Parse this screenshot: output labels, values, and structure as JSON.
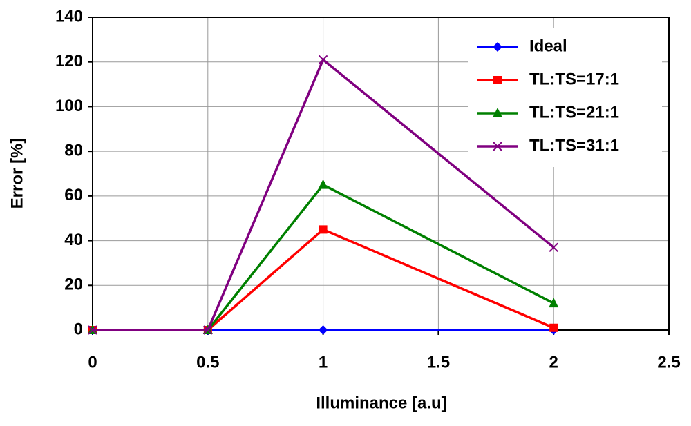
{
  "chart_data": {
    "type": "line",
    "x_label": "Illuminance [a.u]",
    "y_label": "Error [%]",
    "x": [
      0,
      0.5,
      1,
      2
    ],
    "series": [
      {
        "name": "Ideal",
        "color": "#0000ff",
        "marker": "diamond",
        "values": [
          0,
          0,
          0,
          0
        ]
      },
      {
        "name": "TL:TS=17:1",
        "color": "#ff0000",
        "marker": "square",
        "values": [
          0,
          0,
          45,
          1
        ]
      },
      {
        "name": "TL:TS=21:1",
        "color": "#008000",
        "marker": "triangle",
        "values": [
          0,
          0,
          65,
          12
        ]
      },
      {
        "name": "TL:TS=31:1",
        "color": "#800080",
        "marker": "x",
        "values": [
          0,
          0,
          121,
          37
        ]
      }
    ],
    "xlim": [
      0,
      2.5
    ],
    "xticks": [
      0,
      0.5,
      1,
      1.5,
      2,
      2.5
    ],
    "ylim": [
      0,
      140
    ],
    "yticks": [
      0,
      20,
      40,
      60,
      80,
      100,
      120,
      140
    ],
    "grid": true,
    "legend": "top-right"
  }
}
